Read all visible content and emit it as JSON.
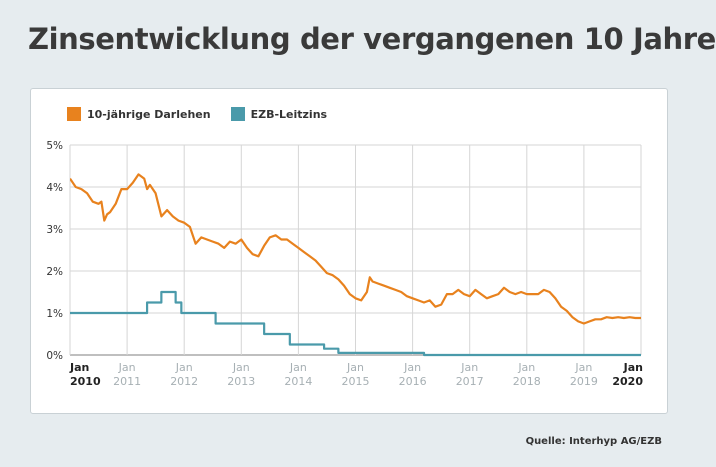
{
  "title": "Zinsentwicklung der vergangenen 10 Jahre",
  "source": "Quelle: Interhyp AG/EZB",
  "colors": {
    "darlehen": "#e8821e",
    "ezb": "#4a9aaa",
    "grid": "#d6d6d6",
    "axis": "#7f7f7f"
  },
  "chart_data": {
    "type": "line",
    "title": "Zinsentwicklung der vergangenen 10 Jahre",
    "ylim": [
      0,
      5
    ],
    "xlim": [
      2010,
      2020.1
    ],
    "y_ticks": [
      "0%",
      "1%",
      "2%",
      "3%",
      "4%",
      "5%"
    ],
    "x_ticks": [
      {
        "month": "Jan",
        "year": "2010",
        "bold": true
      },
      {
        "month": "Jan",
        "year": "2011",
        "bold": false
      },
      {
        "month": "Jan",
        "year": "2012",
        "bold": false
      },
      {
        "month": "Jan",
        "year": "2013",
        "bold": false
      },
      {
        "month": "Jan",
        "year": "2014",
        "bold": false
      },
      {
        "month": "Jan",
        "year": "2015",
        "bold": false
      },
      {
        "month": "Jan",
        "year": "2016",
        "bold": false
      },
      {
        "month": "Jan",
        "year": "2017",
        "bold": false
      },
      {
        "month": "Jan",
        "year": "2018",
        "bold": false
      },
      {
        "month": "Jan",
        "year": "2019",
        "bold": false
      },
      {
        "month": "Jan",
        "year": "2020",
        "bold": true
      }
    ],
    "legend_position": "top-left",
    "grid": true,
    "series": [
      {
        "name": "10-jährige Darlehen",
        "step": false,
        "x": [
          2010.0,
          2010.1,
          2010.2,
          2010.3,
          2010.4,
          2010.5,
          2010.55,
          2010.6,
          2010.65,
          2010.7,
          2010.8,
          2010.9,
          2011.0,
          2011.1,
          2011.2,
          2011.3,
          2011.35,
          2011.4,
          2011.5,
          2011.6,
          2011.7,
          2011.8,
          2011.9,
          2012.0,
          2012.1,
          2012.2,
          2012.3,
          2012.4,
          2012.5,
          2012.6,
          2012.7,
          2012.8,
          2012.9,
          2013.0,
          2013.1,
          2013.2,
          2013.3,
          2013.4,
          2013.5,
          2013.6,
          2013.7,
          2013.8,
          2013.9,
          2014.0,
          2014.1,
          2014.2,
          2014.3,
          2014.4,
          2014.5,
          2014.6,
          2014.7,
          2014.8,
          2014.9,
          2015.0,
          2015.1,
          2015.2,
          2015.25,
          2015.3,
          2015.4,
          2015.5,
          2015.6,
          2015.7,
          2015.8,
          2015.9,
          2016.0,
          2016.1,
          2016.2,
          2016.3,
          2016.4,
          2016.5,
          2016.6,
          2016.7,
          2016.8,
          2016.9,
          2017.0,
          2017.1,
          2017.2,
          2017.3,
          2017.4,
          2017.5,
          2017.6,
          2017.7,
          2017.8,
          2017.9,
          2018.0,
          2018.1,
          2018.2,
          2018.3,
          2018.4,
          2018.5,
          2018.6,
          2018.7,
          2018.8,
          2018.9,
          2019.0,
          2019.1,
          2019.2,
          2019.3,
          2019.4,
          2019.5,
          2019.6,
          2019.7,
          2019.8,
          2019.9,
          2020.0,
          2020.1
        ],
        "values": [
          4.2,
          4.0,
          3.95,
          3.85,
          3.65,
          3.6,
          3.65,
          3.2,
          3.35,
          3.4,
          3.6,
          3.95,
          3.95,
          4.1,
          4.3,
          4.2,
          3.95,
          4.05,
          3.85,
          3.3,
          3.45,
          3.3,
          3.2,
          3.15,
          3.05,
          2.65,
          2.8,
          2.75,
          2.7,
          2.65,
          2.55,
          2.7,
          2.65,
          2.75,
          2.55,
          2.4,
          2.35,
          2.6,
          2.8,
          2.85,
          2.75,
          2.75,
          2.65,
          2.55,
          2.45,
          2.35,
          2.25,
          2.1,
          1.95,
          1.9,
          1.8,
          1.65,
          1.45,
          1.35,
          1.3,
          1.5,
          1.85,
          1.75,
          1.7,
          1.65,
          1.6,
          1.55,
          1.5,
          1.4,
          1.35,
          1.3,
          1.25,
          1.3,
          1.15,
          1.2,
          1.45,
          1.45,
          1.55,
          1.45,
          1.4,
          1.55,
          1.45,
          1.35,
          1.4,
          1.45,
          1.6,
          1.5,
          1.45,
          1.5,
          1.45,
          1.45,
          1.45,
          1.55,
          1.5,
          1.35,
          1.15,
          1.05,
          0.9,
          0.8,
          0.75,
          0.8,
          0.85,
          0.85,
          0.9,
          0.88,
          0.9,
          0.88,
          0.9,
          0.88,
          0.88,
          0.88
        ]
      },
      {
        "name": "EZB-Leitzins",
        "step": true,
        "x": [
          2010.0,
          2011.35,
          2011.6,
          2011.85,
          2011.95,
          2012.55,
          2013.4,
          2013.85,
          2014.45,
          2014.7,
          2016.2,
          2020.1
        ],
        "values": [
          1.0,
          1.25,
          1.5,
          1.25,
          1.0,
          0.75,
          0.5,
          0.25,
          0.15,
          0.05,
          0.0,
          0.0
        ]
      }
    ]
  }
}
